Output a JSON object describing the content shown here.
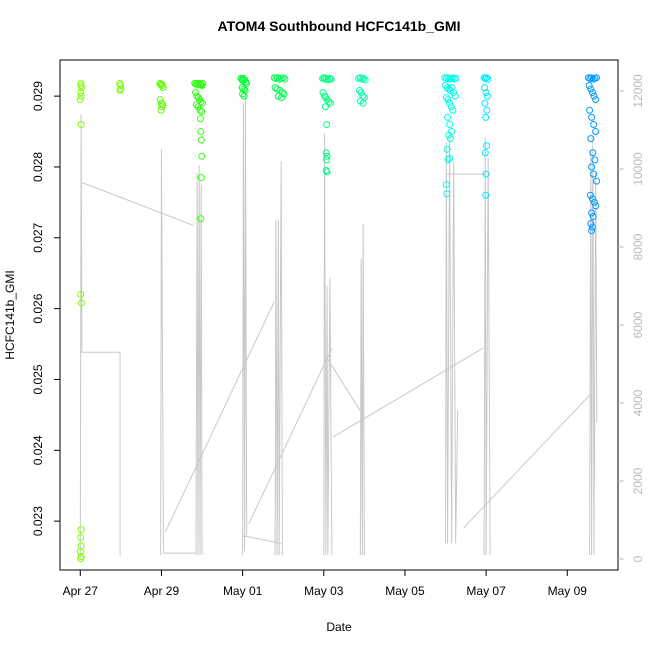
{
  "chart_data": {
    "type": "scatter",
    "title": "ATOM4 Southbound HCFC141b_GMI",
    "x_label": "Date",
    "y_label": "HCFC141b_GMI",
    "xlim": [
      -0.5,
      13.25
    ],
    "xticks": [
      {
        "value": 0,
        "label": "Apr 27"
      },
      {
        "value": 2,
        "label": "Apr 29"
      },
      {
        "value": 4,
        "label": "May 01"
      },
      {
        "value": 6,
        "label": "May 03"
      },
      {
        "value": 8,
        "label": "May 05"
      },
      {
        "value": 10,
        "label": "May 07"
      },
      {
        "value": 12,
        "label": "May 09"
      }
    ],
    "ylim": [
      0.02231,
      0.02951
    ],
    "yticks": [
      0.023,
      0.024,
      0.025,
      0.026,
      0.027,
      0.028,
      0.029
    ],
    "y2lim": [
      -282,
      12795
    ],
    "y2ticks": [
      0,
      2000,
      4000,
      6000,
      8000,
      10000,
      12000
    ],
    "y2_color": "#bbbbbb",
    "series": [
      {
        "type": "line",
        "axis": "y2",
        "color": "#c8c8c8",
        "x": [
          0,
          0.02,
          0.04,
          0.98,
          0.98,
          null,
          0.05,
          2.8,
          null,
          1.98,
          2.0,
          2.05,
          2.85,
          null,
          2.85,
          2.88,
          2.9,
          2.93,
          2.95,
          2.98,
          3.0,
          null,
          2.1,
          4.78,
          null,
          4.0,
          4.02,
          4.05,
          4.07,
          4.1,
          null,
          4.0,
          4.95,
          null,
          4.15,
          6.2,
          null,
          4.8,
          4.82,
          4.85,
          4.88,
          4.9,
          4.95,
          4.98,
          null,
          6.0,
          6.02,
          6.05,
          6.08,
          6.1,
          6.15,
          6.2,
          null,
          6.05,
          6.9,
          null,
          6.23,
          9.93,
          null,
          6.9,
          6.92,
          6.95,
          6.97,
          7.0,
          null,
          9.0,
          9.02,
          9.05,
          9.1,
          9.15,
          9.2,
          9.25,
          9.3,
          null,
          9.0,
          9.98,
          null,
          9.95,
          9.98,
          10.0,
          10.05,
          10.1,
          null,
          9.45,
          12.55,
          null,
          12.55,
          12.58,
          12.6,
          12.63,
          12.66,
          12.7,
          12.73
        ],
        "values": [
          0,
          11400,
          5300,
          5300,
          100,
          null,
          9650,
          8550,
          null,
          100,
          10500,
          150,
          150,
          null,
          100,
          9900,
          100,
          10100,
          100,
          9600,
          100,
          null,
          700,
          6600,
          null,
          100,
          11700,
          200,
          11900,
          600,
          null,
          600,
          400,
          null,
          900,
          5400,
          null,
          100,
          8700,
          100,
          8700,
          100,
          10200,
          100,
          null,
          100,
          10900,
          100,
          7000,
          100,
          7200,
          100,
          null,
          5200,
          3800,
          null,
          3130,
          5410,
          null,
          100,
          7700,
          100,
          8600,
          100,
          null,
          400,
          10700,
          400,
          10800,
          400,
          10200,
          400,
          3800,
          null,
          9870,
          9870,
          null,
          100,
          10800,
          100,
          10300,
          100,
          null,
          800,
          4200,
          null,
          100,
          10500,
          100,
          10800,
          100,
          9900,
          3500
        ]
      },
      {
        "color": "#80ff00",
        "x": [
          0.01,
          0.02,
          0.03,
          0.01,
          0.02,
          0.0,
          0.02,
          0.01,
          0.03,
          0.02,
          0.01,
          0.02,
          0.0,
          0.02,
          0.01
        ],
        "values": [
          0.02918,
          0.02915,
          0.02912,
          0.02905,
          0.029,
          0.02895,
          0.0286,
          0.0262,
          0.02608,
          0.02288,
          0.02277,
          0.02265,
          0.02257,
          0.0225,
          0.02247
        ]
      },
      {
        "color": "#70ff00",
        "x": [
          0.97,
          0.99,
          1.0,
          0.98
        ],
        "values": [
          0.02918,
          0.02915,
          0.0291,
          0.02908
        ]
      },
      {
        "color": "#5cff00",
        "x": [
          1.96,
          1.98,
          2.0,
          2.02,
          2.04,
          1.97,
          2.0,
          2.03,
          2.01,
          1.99
        ],
        "values": [
          0.02918,
          0.02916,
          0.02917,
          0.02915,
          0.02912,
          0.02895,
          0.0289,
          0.02888,
          0.02885,
          0.0288
        ]
      },
      {
        "color": "#30ff10",
        "x": [
          2.82,
          2.85,
          2.88,
          2.9,
          2.93,
          2.96,
          2.98,
          3.0,
          3.02,
          2.84,
          2.87,
          2.91,
          2.94,
          2.97,
          3.01,
          2.86,
          2.9,
          2.95,
          2.99,
          2.96,
          2.97,
          2.98,
          2.99,
          2.98,
          2.97
        ],
        "values": [
          0.02918,
          0.02917,
          0.02918,
          0.02916,
          0.02918,
          0.02917,
          0.02916,
          0.02915,
          0.02918,
          0.02905,
          0.029,
          0.02898,
          0.02895,
          0.02892,
          0.0289,
          0.02888,
          0.02885,
          0.0288,
          0.02878,
          0.02868,
          0.0285,
          0.02838,
          0.02815,
          0.02785,
          0.02727
        ]
      },
      {
        "color": "#00ff30",
        "x": [
          3.96,
          3.98,
          4.0,
          4.02,
          4.05,
          4.08,
          4.1,
          3.99,
          4.03,
          4.06,
          4.0,
          4.04
        ],
        "values": [
          0.02925,
          0.02924,
          0.02922,
          0.02925,
          0.02923,
          0.0292,
          0.02918,
          0.02912,
          0.0291,
          0.02908,
          0.02903,
          0.029
        ]
      },
      {
        "color": "#00ff50",
        "x": [
          4.78,
          4.82,
          4.86,
          4.9,
          4.95,
          5.0,
          5.04,
          4.8,
          4.85,
          4.92,
          4.98,
          5.02,
          4.88,
          4.96
        ],
        "values": [
          0.02926,
          0.02925,
          0.02926,
          0.02924,
          0.02925,
          0.02926,
          0.02924,
          0.02912,
          0.0291,
          0.02908,
          0.02905,
          0.02903,
          0.029,
          0.02898
        ]
      },
      {
        "color": "#00ff80",
        "x": [
          5.97,
          6.0,
          6.03,
          6.06,
          6.1,
          6.15,
          6.18,
          5.98,
          6.02,
          6.05,
          6.08,
          6.12,
          6.16,
          6.04,
          6.07,
          6.06,
          6.08,
          6.07,
          6.06,
          6.08
        ],
        "values": [
          0.02925,
          0.02926,
          0.02924,
          0.02925,
          0.02923,
          0.02925,
          0.02924,
          0.02905,
          0.029,
          0.02898,
          0.02895,
          0.02892,
          0.0289,
          0.02885,
          0.0286,
          0.0282,
          0.02815,
          0.0281,
          0.02795,
          0.02793
        ]
      },
      {
        "color": "#00ffa8",
        "x": [
          6.86,
          6.9,
          6.94,
          6.98,
          7.02,
          6.88,
          6.92,
          6.96,
          7.0,
          6.9,
          6.97
        ],
        "values": [
          0.02925,
          0.02926,
          0.02924,
          0.02925,
          0.02923,
          0.02908,
          0.02905,
          0.029,
          0.02898,
          0.02893,
          0.0289
        ]
      },
      {
        "color": "#00ffe8",
        "x": [
          8.98,
          9.02,
          9.06,
          9.1,
          9.14,
          9.18,
          9.22,
          9.26,
          9.0,
          9.04,
          9.08,
          9.12,
          9.16,
          9.2,
          9.24,
          9.02,
          9.06,
          9.1,
          9.14,
          9.18,
          9.05,
          9.1,
          9.15,
          9.08,
          9.12,
          9.04,
          9.1,
          9.06,
          9.02,
          9.03
        ],
        "values": [
          0.02926,
          0.02925,
          0.02926,
          0.02924,
          0.02925,
          0.02926,
          0.02924,
          0.02925,
          0.02915,
          0.02912,
          0.0291,
          0.02908,
          0.02912,
          0.02905,
          0.029,
          0.02898,
          0.02895,
          0.0289,
          0.02885,
          0.0288,
          0.0287,
          0.0286,
          0.0285,
          0.02845,
          0.0284,
          0.02825,
          0.02812,
          0.0281,
          0.02775,
          0.02762
        ]
      },
      {
        "color": "#00eaff",
        "x": [
          9.95,
          9.98,
          10.01,
          10.04,
          9.96,
          10.0,
          10.03,
          9.97,
          10.02,
          9.99,
          10.01,
          9.98,
          10.0,
          9.99
        ],
        "values": [
          0.02926,
          0.02925,
          0.02926,
          0.02924,
          0.02912,
          0.02905,
          0.029,
          0.0289,
          0.0288,
          0.0287,
          0.0283,
          0.0282,
          0.0279,
          0.0276
        ]
      },
      {
        "color": "#0099ff",
        "x": [
          12.52,
          12.56,
          12.6,
          12.64,
          12.68,
          12.72,
          12.54,
          12.58,
          12.62,
          12.66,
          12.7,
          12.55,
          12.6,
          12.65,
          12.7,
          12.58,
          12.63,
          12.68,
          12.6,
          12.65,
          12.72,
          12.57,
          12.62,
          12.67,
          12.7,
          12.6,
          12.64,
          12.58,
          12.62,
          12.6
        ],
        "values": [
          0.02926,
          0.02925,
          0.02926,
          0.02924,
          0.02925,
          0.02926,
          0.02915,
          0.0291,
          0.02905,
          0.029,
          0.02895,
          0.0288,
          0.0287,
          0.0286,
          0.0285,
          0.0284,
          0.0282,
          0.0281,
          0.028,
          0.0279,
          0.0278,
          0.0276,
          0.02755,
          0.0275,
          0.02745,
          0.02735,
          0.0273,
          0.0272,
          0.02715,
          0.0271
        ]
      }
    ]
  }
}
